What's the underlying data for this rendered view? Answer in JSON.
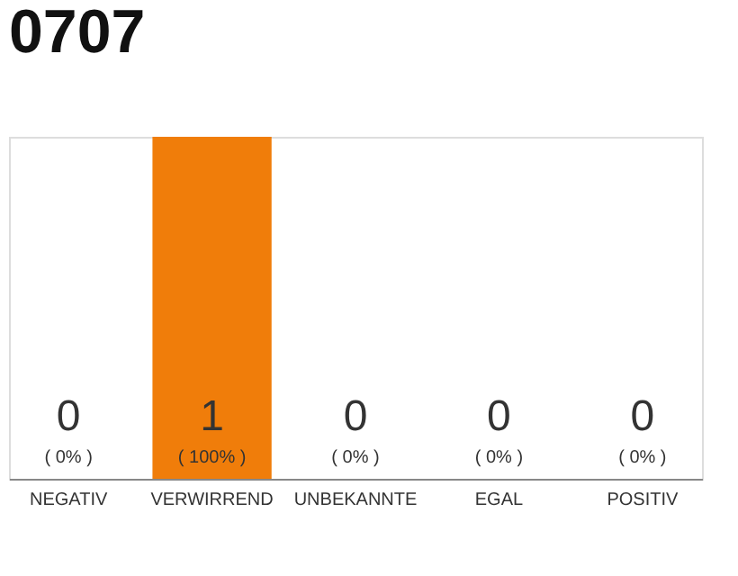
{
  "chart_data": {
    "type": "bar",
    "title": "0707",
    "categories": [
      "NEGATIV",
      "VERWIRREND",
      "UNBEKANNTE",
      "EGAL",
      "POSITIV"
    ],
    "values": [
      0,
      1,
      0,
      0,
      0
    ],
    "color": "#f07d0a",
    "value_labels": [
      "0",
      "1",
      "0",
      "0",
      "0"
    ],
    "annotations": [
      "( 0% )",
      "( 100% )",
      "( 0% )",
      "( 0% )",
      "( 0% )"
    ],
    "ylim": [
      0,
      1
    ],
    "tick_labels": "x"
  }
}
